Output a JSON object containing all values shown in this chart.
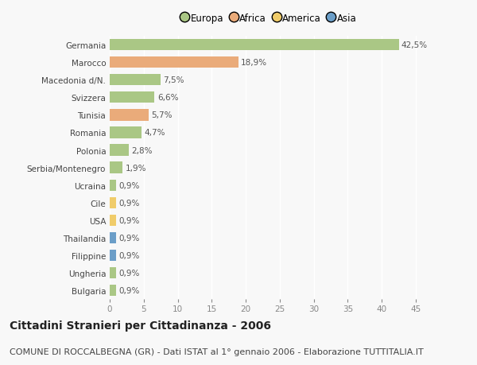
{
  "title": "Cittadini Stranieri per Cittadinanza - 2006",
  "subtitle": "COMUNE DI ROCCALBEGNA (GR) - Dati ISTAT al 1° gennaio 2006 - Elaborazione TUTTITALIA.IT",
  "categories": [
    "Germania",
    "Marocco",
    "Macedonia d/N.",
    "Svizzera",
    "Tunisia",
    "Romania",
    "Polonia",
    "Serbia/Montenegro",
    "Ucraina",
    "Cile",
    "USA",
    "Thailandia",
    "Filippine",
    "Ungheria",
    "Bulgaria"
  ],
  "values": [
    42.5,
    18.9,
    7.5,
    6.6,
    5.7,
    4.7,
    2.8,
    1.9,
    0.9,
    0.9,
    0.9,
    0.9,
    0.9,
    0.9,
    0.9
  ],
  "labels": [
    "42,5%",
    "18,9%",
    "7,5%",
    "6,6%",
    "5,7%",
    "4,7%",
    "2,8%",
    "1,9%",
    "0,9%",
    "0,9%",
    "0,9%",
    "0,9%",
    "0,9%",
    "0,9%",
    "0,9%"
  ],
  "bar_colors": [
    "#aac785",
    "#eaab7a",
    "#aac785",
    "#aac785",
    "#eaab7a",
    "#aac785",
    "#aac785",
    "#aac785",
    "#aac785",
    "#f0cc6a",
    "#f0cc6a",
    "#6b9ec8",
    "#6b9ec8",
    "#aac785",
    "#aac785"
  ],
  "legend": [
    {
      "label": "Europa",
      "color": "#aac785"
    },
    {
      "label": "Africa",
      "color": "#eaab7a"
    },
    {
      "label": "America",
      "color": "#f0cc6a"
    },
    {
      "label": "Asia",
      "color": "#6b9ec8"
    }
  ],
  "xlim": [
    0,
    47
  ],
  "xticks": [
    0,
    5,
    10,
    15,
    20,
    25,
    30,
    35,
    40,
    45
  ],
  "plot_bg_color": "#f8f8f8",
  "fig_bg_color": "#f8f8f8",
  "bar_height": 0.65,
  "grid_color": "#ffffff",
  "title_fontsize": 10,
  "subtitle_fontsize": 8,
  "label_fontsize": 7.5,
  "tick_fontsize": 7.5,
  "ytick_fontsize": 7.5
}
